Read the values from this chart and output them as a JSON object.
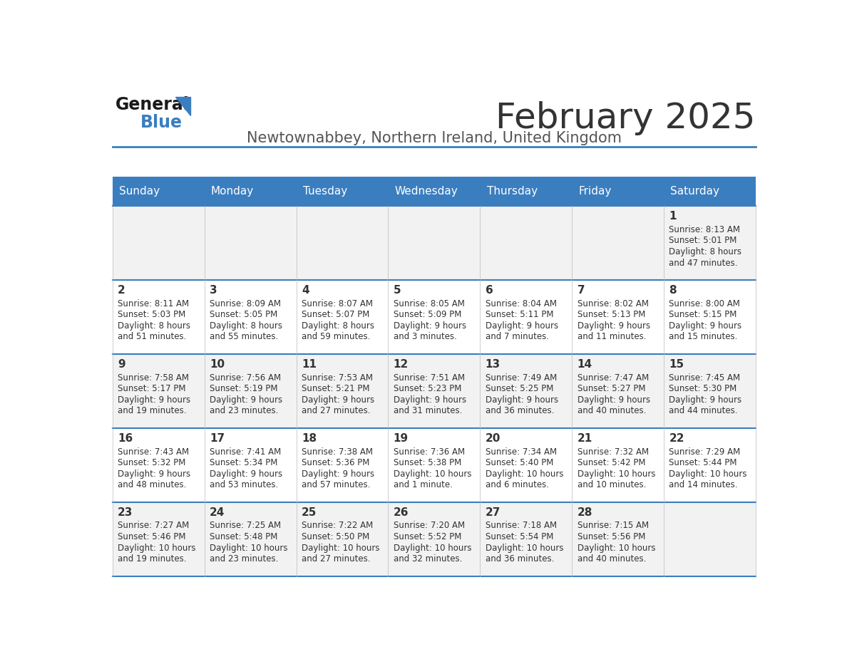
{
  "title": "February 2025",
  "subtitle": "Newtownabbey, Northern Ireland, United Kingdom",
  "days_of_week": [
    "Sunday",
    "Monday",
    "Tuesday",
    "Wednesday",
    "Thursday",
    "Friday",
    "Saturday"
  ],
  "header_bg": "#3a7ebf",
  "header_text": "#ffffff",
  "cell_bg_odd": "#f2f2f2",
  "cell_bg_even": "#ffffff",
  "cell_border": "#3a7ebf",
  "day_num_color": "#333333",
  "info_text_color": "#333333",
  "title_color": "#333333",
  "subtitle_color": "#555555",
  "logo_general_color": "#1a1a1a",
  "logo_blue_color": "#3a7ebf",
  "logo_triangle_color": "#3a7ebf",
  "calendar_data": [
    [
      null,
      null,
      null,
      null,
      null,
      null,
      {
        "day": 1,
        "sunrise": "8:13 AM",
        "sunset": "5:01 PM",
        "daylight": "8 hours and 47 minutes."
      }
    ],
    [
      {
        "day": 2,
        "sunrise": "8:11 AM",
        "sunset": "5:03 PM",
        "daylight": "8 hours and 51 minutes."
      },
      {
        "day": 3,
        "sunrise": "8:09 AM",
        "sunset": "5:05 PM",
        "daylight": "8 hours and 55 minutes."
      },
      {
        "day": 4,
        "sunrise": "8:07 AM",
        "sunset": "5:07 PM",
        "daylight": "8 hours and 59 minutes."
      },
      {
        "day": 5,
        "sunrise": "8:05 AM",
        "sunset": "5:09 PM",
        "daylight": "9 hours and 3 minutes."
      },
      {
        "day": 6,
        "sunrise": "8:04 AM",
        "sunset": "5:11 PM",
        "daylight": "9 hours and 7 minutes."
      },
      {
        "day": 7,
        "sunrise": "8:02 AM",
        "sunset": "5:13 PM",
        "daylight": "9 hours and 11 minutes."
      },
      {
        "day": 8,
        "sunrise": "8:00 AM",
        "sunset": "5:15 PM",
        "daylight": "9 hours and 15 minutes."
      }
    ],
    [
      {
        "day": 9,
        "sunrise": "7:58 AM",
        "sunset": "5:17 PM",
        "daylight": "9 hours and 19 minutes."
      },
      {
        "day": 10,
        "sunrise": "7:56 AM",
        "sunset": "5:19 PM",
        "daylight": "9 hours and 23 minutes."
      },
      {
        "day": 11,
        "sunrise": "7:53 AM",
        "sunset": "5:21 PM",
        "daylight": "9 hours and 27 minutes."
      },
      {
        "day": 12,
        "sunrise": "7:51 AM",
        "sunset": "5:23 PM",
        "daylight": "9 hours and 31 minutes."
      },
      {
        "day": 13,
        "sunrise": "7:49 AM",
        "sunset": "5:25 PM",
        "daylight": "9 hours and 36 minutes."
      },
      {
        "day": 14,
        "sunrise": "7:47 AM",
        "sunset": "5:27 PM",
        "daylight": "9 hours and 40 minutes."
      },
      {
        "day": 15,
        "sunrise": "7:45 AM",
        "sunset": "5:30 PM",
        "daylight": "9 hours and 44 minutes."
      }
    ],
    [
      {
        "day": 16,
        "sunrise": "7:43 AM",
        "sunset": "5:32 PM",
        "daylight": "9 hours and 48 minutes."
      },
      {
        "day": 17,
        "sunrise": "7:41 AM",
        "sunset": "5:34 PM",
        "daylight": "9 hours and 53 minutes."
      },
      {
        "day": 18,
        "sunrise": "7:38 AM",
        "sunset": "5:36 PM",
        "daylight": "9 hours and 57 minutes."
      },
      {
        "day": 19,
        "sunrise": "7:36 AM",
        "sunset": "5:38 PM",
        "daylight": "10 hours and 1 minute."
      },
      {
        "day": 20,
        "sunrise": "7:34 AM",
        "sunset": "5:40 PM",
        "daylight": "10 hours and 6 minutes."
      },
      {
        "day": 21,
        "sunrise": "7:32 AM",
        "sunset": "5:42 PM",
        "daylight": "10 hours and 10 minutes."
      },
      {
        "day": 22,
        "sunrise": "7:29 AM",
        "sunset": "5:44 PM",
        "daylight": "10 hours and 14 minutes."
      }
    ],
    [
      {
        "day": 23,
        "sunrise": "7:27 AM",
        "sunset": "5:46 PM",
        "daylight": "10 hours and 19 minutes."
      },
      {
        "day": 24,
        "sunrise": "7:25 AM",
        "sunset": "5:48 PM",
        "daylight": "10 hours and 23 minutes."
      },
      {
        "day": 25,
        "sunrise": "7:22 AM",
        "sunset": "5:50 PM",
        "daylight": "10 hours and 27 minutes."
      },
      {
        "day": 26,
        "sunrise": "7:20 AM",
        "sunset": "5:52 PM",
        "daylight": "10 hours and 32 minutes."
      },
      {
        "day": 27,
        "sunrise": "7:18 AM",
        "sunset": "5:54 PM",
        "daylight": "10 hours and 36 minutes."
      },
      {
        "day": 28,
        "sunrise": "7:15 AM",
        "sunset": "5:56 PM",
        "daylight": "10 hours and 40 minutes."
      },
      null
    ]
  ]
}
